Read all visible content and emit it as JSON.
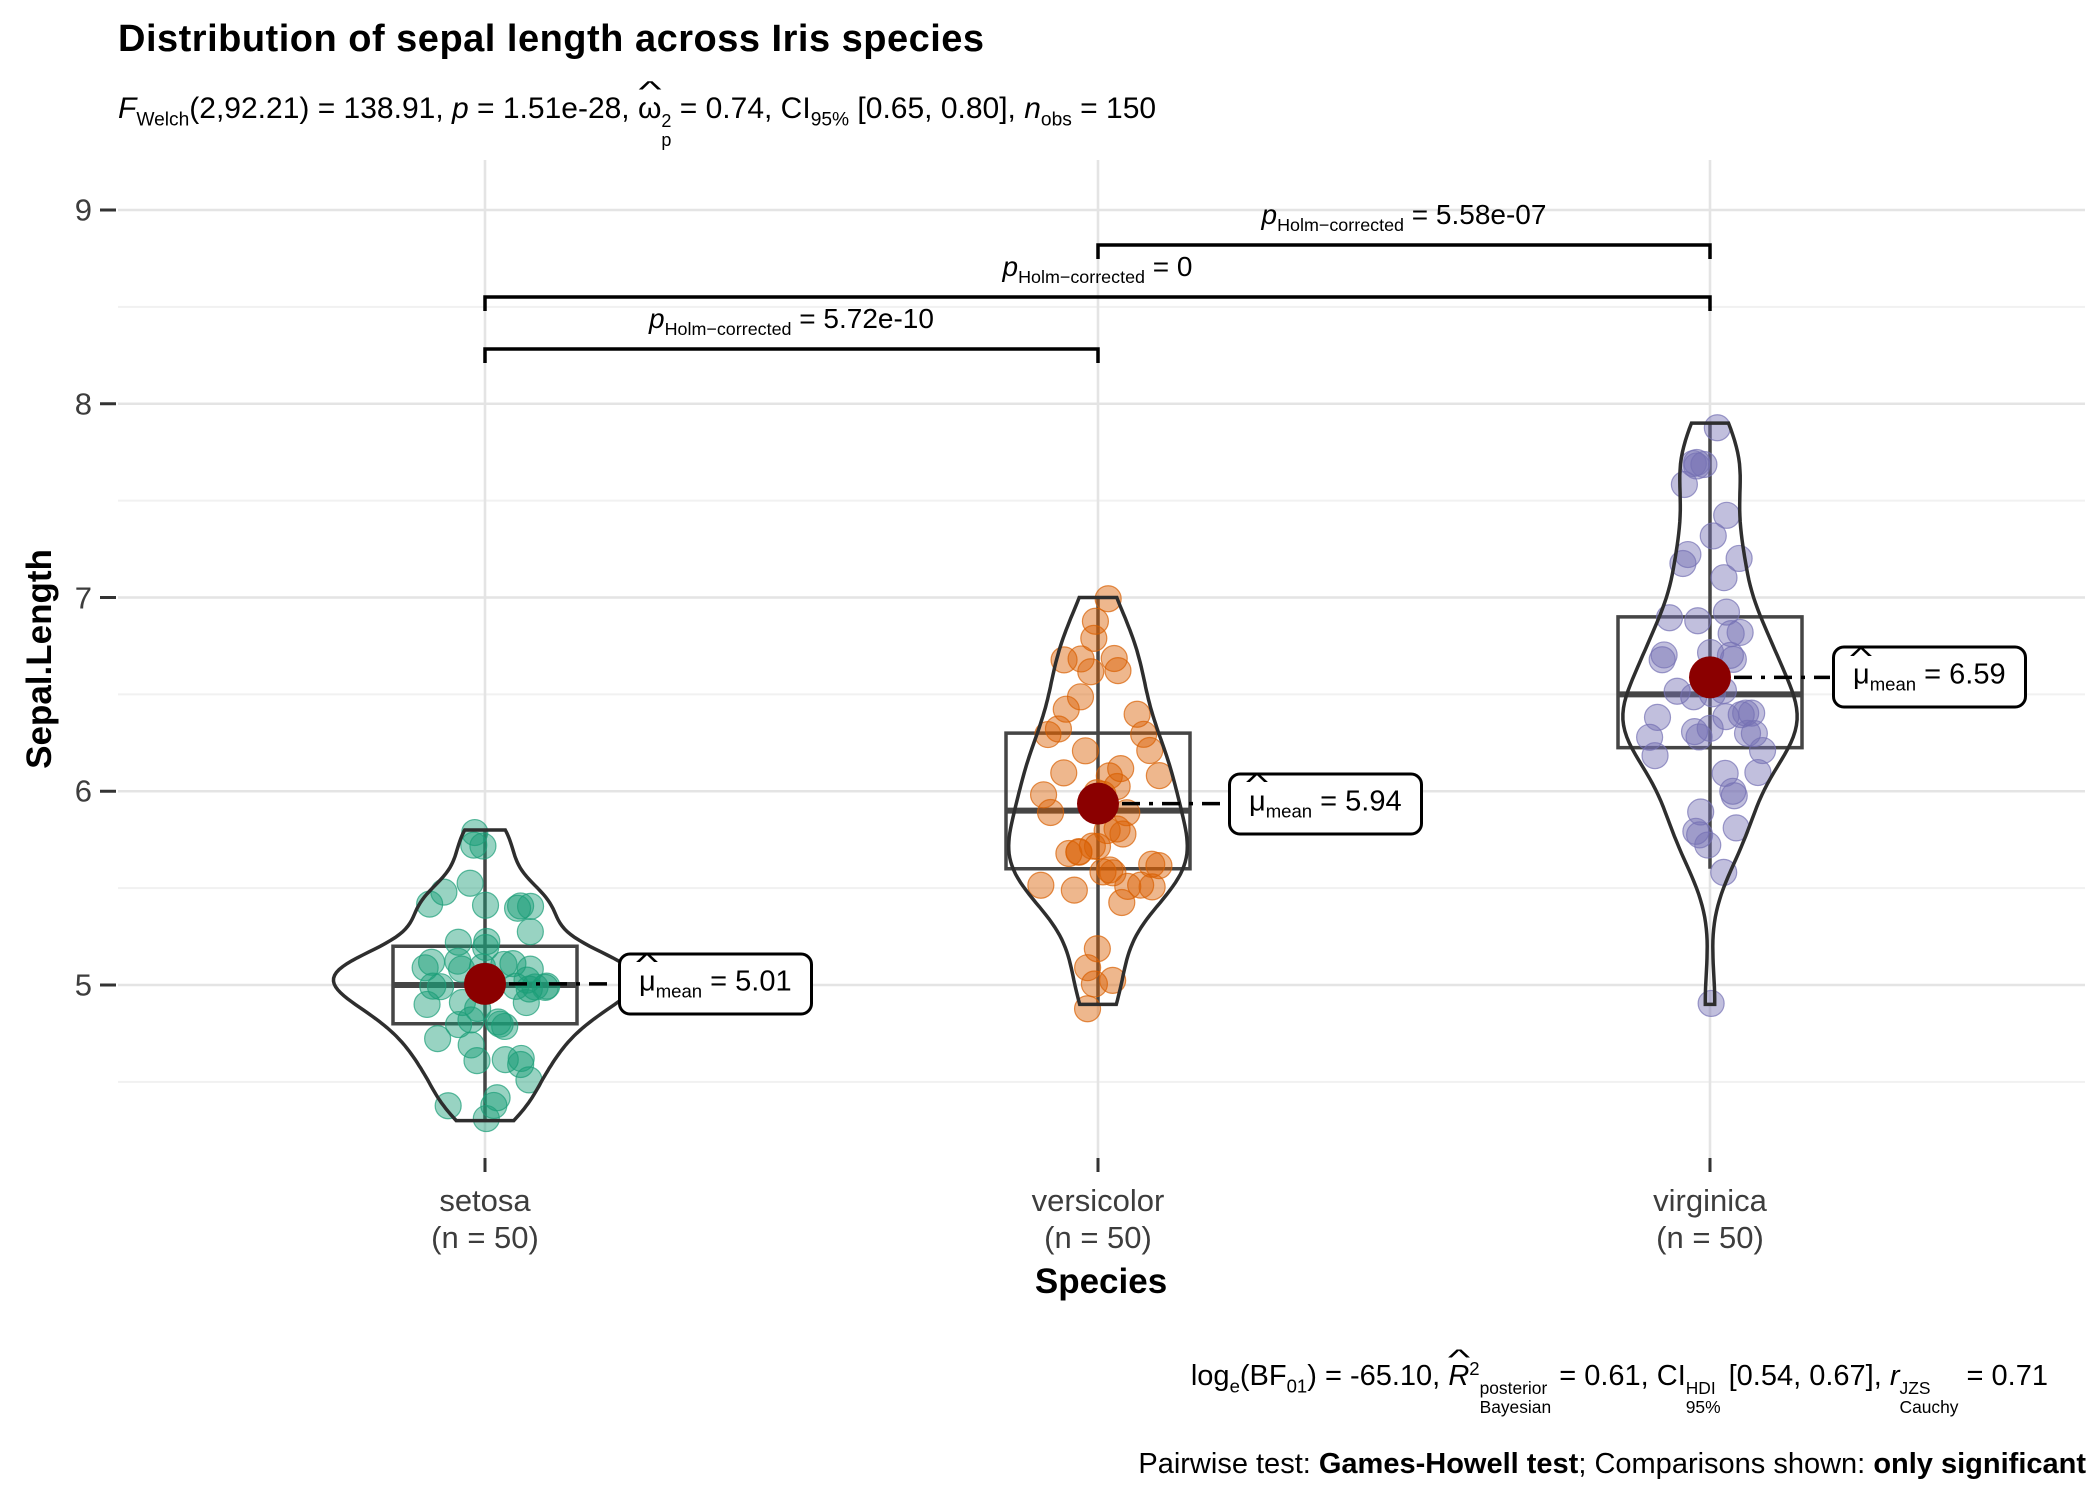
{
  "title": "Distribution of sepal length across Iris species",
  "subtitle_segs": [
    {
      "t": "F",
      "i": 1
    },
    {
      "t": "Welch",
      "sub": 1
    },
    {
      "t": "(2,92.21) = 138.91, "
    },
    {
      "t": "p",
      "i": 1
    },
    {
      "t": " = 1.51e-28, "
    },
    {
      "t": "ω",
      "hat": 1
    },
    {
      "ss": [
        "2",
        "p"
      ]
    },
    {
      "t": " = 0.74, CI"
    },
    {
      "t": "95%",
      "sub": 1
    },
    {
      "t": " [0.65, 0.80], "
    },
    {
      "t": "n",
      "i": 1
    },
    {
      "t": "obs",
      "sub": 1
    },
    {
      "t": " = 150"
    }
  ],
  "y_axis": {
    "title": "Sepal.Length",
    "ticks": [
      "9",
      "8",
      "7",
      "6",
      "5"
    ],
    "tick_values": [
      9,
      8,
      7,
      6,
      5
    ]
  },
  "x_axis": {
    "title": "Species",
    "ticks": [
      {
        "label": "setosa",
        "n": "(n = 50)"
      },
      {
        "label": "versicolor",
        "n": "(n = 50)"
      },
      {
        "label": "virginica",
        "n": "(n = 50)"
      }
    ]
  },
  "comparisons": [
    {
      "segs": [
        {
          "t": "p",
          "i": 1
        },
        {
          "t": "Holm−corrected",
          "sub": 1
        },
        {
          "t": " = 5.58e-07"
        }
      ]
    },
    {
      "segs": [
        {
          "t": "p",
          "i": 1
        },
        {
          "t": "Holm−corrected",
          "sub": 1
        },
        {
          "t": " = 0"
        }
      ]
    },
    {
      "segs": [
        {
          "t": "p",
          "i": 1
        },
        {
          "t": "Holm−corrected",
          "sub": 1
        },
        {
          "t": " = 5.72e-10"
        }
      ]
    }
  ],
  "mean_labels": [
    {
      "segs": [
        {
          "t": "μ",
          "hat": 1
        },
        {
          "t": "mean",
          "sub": 1
        },
        {
          "t": " = 5.01"
        }
      ]
    },
    {
      "segs": [
        {
          "t": "μ",
          "hat": 1
        },
        {
          "t": "mean",
          "sub": 1
        },
        {
          "t": " = 5.94"
        }
      ]
    },
    {
      "segs": [
        {
          "t": "μ",
          "hat": 1
        },
        {
          "t": "mean",
          "sub": 1
        },
        {
          "t": " = 6.59"
        }
      ]
    }
  ],
  "caption_line1_segs": [
    {
      "t": "log"
    },
    {
      "t": "e",
      "sub": 1
    },
    {
      "t": "(BF"
    },
    {
      "t": "01",
      "sub": 1
    },
    {
      "t": ") = -65.10, "
    },
    {
      "t": "R",
      "i": 1,
      "hat": 1
    },
    {
      "t": "2",
      "sup": 1
    },
    {
      "ss": [
        "posterior",
        "Bayesian"
      ]
    },
    {
      "t": " = 0.61, CI"
    },
    {
      "ss": [
        "HDI",
        "95%"
      ]
    },
    {
      "t": " [0.54, 0.67], "
    },
    {
      "t": "r",
      "i": 1
    },
    {
      "ss": [
        "JZS",
        "Cauchy"
      ]
    },
    {
      "t": " = 0.71"
    }
  ],
  "caption_line2_segs": [
    {
      "t": "Pairwise test: "
    },
    {
      "t": "Games-Howell test",
      "b": 1
    },
    {
      "t": "; Comparisons shown: "
    },
    {
      "t": "only significant",
      "b": 1
    }
  ],
  "chart_data": {
    "type": "violin+boxplot+jitter",
    "title": "Distribution of sepal length across Iris species",
    "xlabel": "Species",
    "ylabel": "Sepal.Length",
    "ylim": [
      4.2,
      9
    ],
    "y_major_ticks": [
      5,
      6,
      7,
      8,
      9
    ],
    "y_minor_gridlines": [
      4.5,
      5.5,
      6.5,
      7.5,
      8.5
    ],
    "grid": true,
    "categories": [
      "setosa",
      "versicolor",
      "virginica"
    ],
    "mean_color": "#8B0000",
    "series": [
      {
        "name": "setosa",
        "n": 50,
        "color": "#1B9E77",
        "mean": 5.006,
        "mean_label": "5.01",
        "box": {
          "q1": 4.8,
          "median": 5.0,
          "q3": 5.2,
          "whisker_low": 4.3,
          "whisker_high": 5.8
        },
        "values": [
          5.1,
          4.9,
          4.7,
          4.6,
          5.0,
          5.4,
          4.6,
          5.0,
          4.4,
          4.9,
          5.4,
          4.8,
          4.8,
          4.3,
          5.8,
          5.7,
          5.4,
          5.1,
          5.7,
          5.1,
          5.4,
          5.1,
          4.6,
          5.1,
          4.8,
          5.0,
          5.0,
          5.2,
          5.2,
          4.7,
          4.8,
          5.4,
          5.2,
          5.5,
          4.9,
          5.0,
          5.5,
          4.9,
          4.4,
          5.1,
          5.0,
          4.5,
          4.4,
          5.0,
          5.1,
          4.8,
          5.1,
          4.6,
          5.3,
          5.0
        ]
      },
      {
        "name": "versicolor",
        "n": 50,
        "color": "#D95F02",
        "mean": 5.936,
        "mean_label": "5.94",
        "box": {
          "q1": 5.6,
          "median": 5.9,
          "q3": 6.3,
          "whisker_low": 4.9,
          "whisker_high": 7.0
        },
        "values": [
          7.0,
          6.4,
          6.9,
          5.5,
          6.5,
          5.7,
          6.3,
          4.9,
          6.6,
          5.2,
          5.0,
          5.9,
          6.0,
          6.1,
          5.6,
          6.7,
          5.6,
          5.8,
          6.2,
          5.6,
          5.9,
          6.1,
          6.3,
          6.1,
          6.4,
          6.6,
          6.8,
          6.7,
          6.0,
          5.7,
          5.5,
          5.5,
          5.8,
          6.0,
          5.4,
          6.0,
          6.7,
          6.3,
          5.6,
          5.5,
          5.5,
          6.1,
          5.8,
          5.0,
          5.6,
          5.7,
          5.7,
          6.2,
          5.1,
          5.7
        ]
      },
      {
        "name": "virginica",
        "n": 50,
        "color": "#7570B3",
        "mean": 6.588,
        "mean_label": "6.59",
        "box": {
          "q1": 6.225,
          "median": 6.5,
          "q3": 6.9,
          "whisker_low": 5.6,
          "whisker_high": 7.9
        },
        "values": [
          6.3,
          5.8,
          7.1,
          6.3,
          6.5,
          7.6,
          4.9,
          7.3,
          6.7,
          7.2,
          6.5,
          6.4,
          6.8,
          5.7,
          5.8,
          6.4,
          6.5,
          7.7,
          7.7,
          6.0,
          6.9,
          5.6,
          7.7,
          6.3,
          6.7,
          7.2,
          6.2,
          6.1,
          6.4,
          7.2,
          7.4,
          7.9,
          6.4,
          6.3,
          6.1,
          7.7,
          6.3,
          6.4,
          6.0,
          6.9,
          6.7,
          6.9,
          5.8,
          6.8,
          6.7,
          6.7,
          6.3,
          6.5,
          6.2,
          5.9
        ]
      }
    ],
    "comparisons": [
      {
        "group1": "versicolor",
        "group2": "virginica",
        "p_label": "5.58e-07"
      },
      {
        "group1": "setosa",
        "group2": "virginica",
        "p_label": "0"
      },
      {
        "group1": "setosa",
        "group2": "versicolor",
        "p_label": "5.72e-10"
      }
    ],
    "anova": {
      "test": "Welch",
      "F": 138.91,
      "df_between": 2,
      "df_within": 92.21,
      "p": "1.51e-28",
      "omega_sq_p": 0.74,
      "ci_95": [
        0.65,
        0.8
      ],
      "n_obs": 150
    },
    "bayes": {
      "log_e_BF01": -65.1,
      "R2_bayesian_posterior": 0.61,
      "hdi_95": [
        0.54,
        0.67
      ],
      "r_cauchy_JZS": 0.71
    },
    "pairwise_test": "Games-Howell test",
    "comparisons_shown": "only significant"
  }
}
